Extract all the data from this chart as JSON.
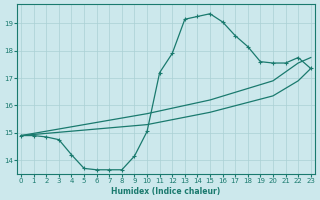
{
  "xlabel": "Humidex (Indice chaleur)",
  "xlim": [
    -0.3,
    23.3
  ],
  "ylim": [
    13.5,
    19.7
  ],
  "yticks": [
    14,
    15,
    16,
    17,
    18,
    19
  ],
  "xticks": [
    0,
    1,
    2,
    3,
    4,
    5,
    6,
    7,
    8,
    9,
    10,
    11,
    12,
    13,
    14,
    15,
    16,
    17,
    18,
    19,
    20,
    21,
    22,
    23
  ],
  "bg_color": "#cce8ec",
  "grid_color": "#aad0d5",
  "line_color": "#1a7a6e",
  "main_x": [
    0,
    1,
    2,
    3,
    4,
    5,
    6,
    7,
    8,
    9,
    10,
    11,
    12,
    13,
    14,
    15,
    16,
    17,
    18,
    19,
    20,
    21,
    22,
    23
  ],
  "main_y": [
    14.9,
    14.9,
    14.85,
    14.75,
    14.2,
    13.7,
    13.65,
    13.65,
    13.65,
    14.15,
    15.05,
    17.2,
    17.9,
    19.15,
    19.25,
    19.35,
    19.05,
    18.55,
    18.15,
    17.6,
    17.55,
    17.55,
    17.75,
    17.35
  ],
  "diag1_x": [
    0,
    10,
    15,
    20,
    22,
    23
  ],
  "diag1_y": [
    14.9,
    15.7,
    16.2,
    16.9,
    17.55,
    17.75
  ],
  "diag2_x": [
    0,
    10,
    15,
    20,
    22,
    23
  ],
  "diag2_y": [
    14.9,
    15.3,
    15.75,
    16.35,
    16.9,
    17.35
  ]
}
